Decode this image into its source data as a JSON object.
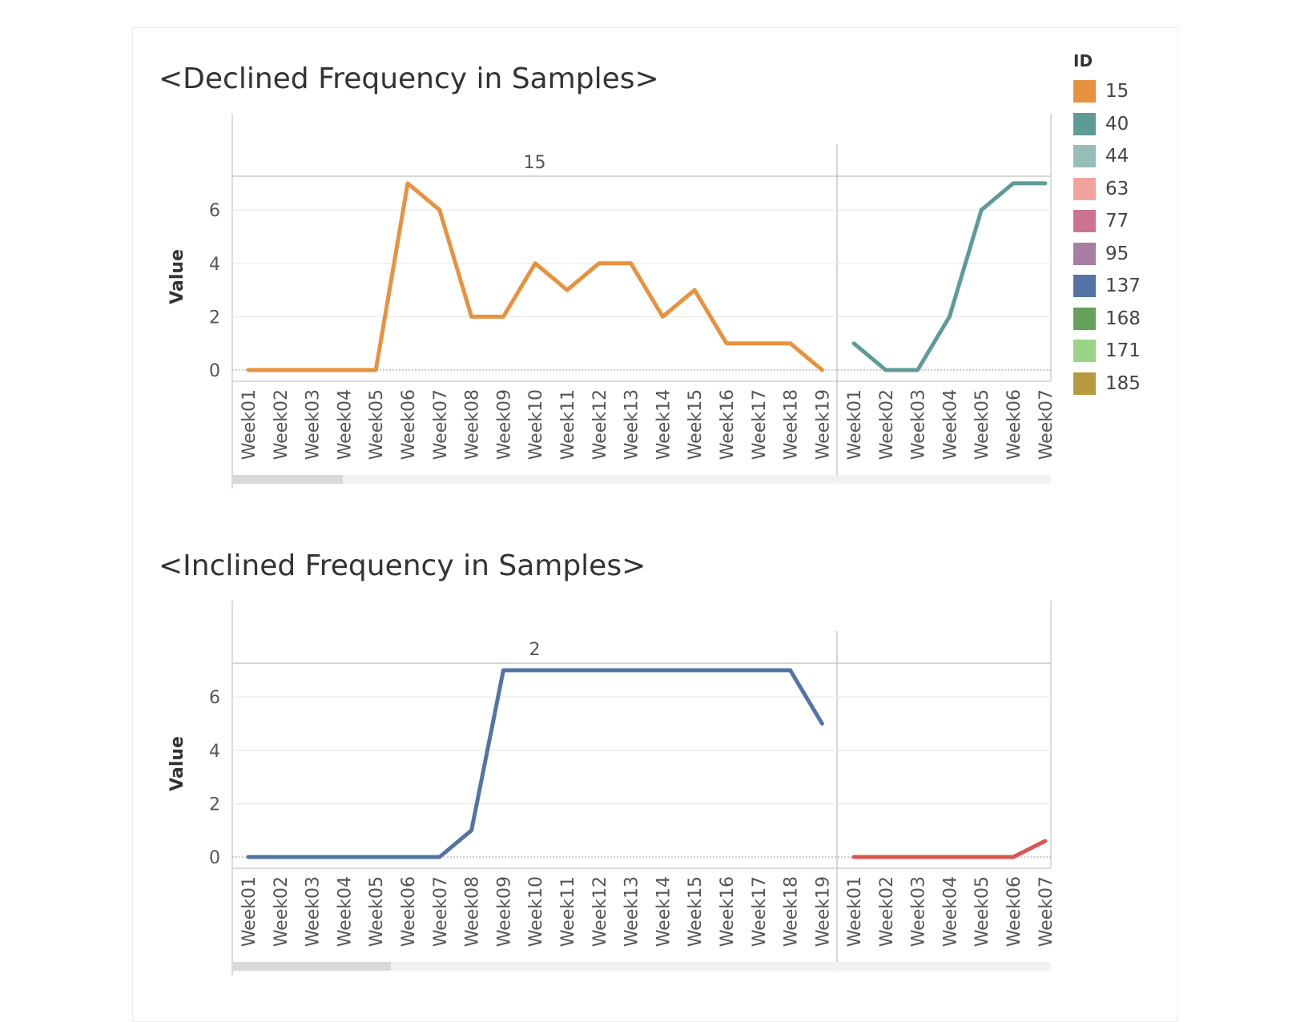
{
  "legend": {
    "title": "ID",
    "items": [
      {
        "label": "15",
        "color": "#E8913E"
      },
      {
        "label": "40",
        "color": "#5E9B97"
      },
      {
        "label": "44",
        "color": "#97BDB9"
      },
      {
        "label": "63",
        "color": "#F2A39C"
      },
      {
        "label": "77",
        "color": "#CC7390"
      },
      {
        "label": "95",
        "color": "#A87EA4"
      },
      {
        "label": "137",
        "color": "#5374A5"
      },
      {
        "label": "168",
        "color": "#66A158"
      },
      {
        "label": "171",
        "color": "#99D487"
      },
      {
        "label": "185",
        "color": "#B7993F"
      }
    ]
  },
  "chart_data": [
    {
      "type": "line",
      "title": "<Declined Frequency in Samples>",
      "ylabel": "Value",
      "ylim": [
        0,
        7
      ],
      "yticks": [
        0,
        2,
        4,
        6
      ],
      "panels": [
        {
          "header": "15",
          "color": "#E8913E",
          "x": [
            "Week01",
            "Week02",
            "Week03",
            "Week04",
            "Week05",
            "Week06",
            "Week07",
            "Week08",
            "Week09",
            "Week10",
            "Week11",
            "Week12",
            "Week13",
            "Week14",
            "Week15",
            "Week16",
            "Week17",
            "Week18",
            "Week19"
          ],
          "values": [
            0,
            0,
            0,
            0,
            0,
            7,
            6,
            2,
            2,
            4,
            3,
            4,
            4,
            2,
            3,
            1,
            1,
            1,
            0
          ]
        },
        {
          "header": "",
          "color": "#5E9B97",
          "x": [
            "Week01",
            "Week02",
            "Week03",
            "Week04",
            "Week05",
            "Week06",
            "Week07"
          ],
          "values": [
            1,
            0,
            0,
            2,
            6,
            7,
            7
          ]
        }
      ]
    },
    {
      "type": "line",
      "title": "<Inclined Frequency in Samples>",
      "ylabel": "Value",
      "ylim": [
        0,
        7
      ],
      "yticks": [
        0,
        2,
        4,
        6
      ],
      "panels": [
        {
          "header": "2",
          "color": "#5374A5",
          "x": [
            "Week01",
            "Week02",
            "Week03",
            "Week04",
            "Week05",
            "Week06",
            "Week07",
            "Week08",
            "Week09",
            "Week10",
            "Week11",
            "Week12",
            "Week13",
            "Week14",
            "Week15",
            "Week16",
            "Week17",
            "Week18",
            "Week19"
          ],
          "values": [
            0,
            0,
            0,
            0,
            0,
            0,
            0,
            1,
            7,
            7,
            7,
            7,
            7,
            7,
            7,
            7,
            7,
            7,
            5
          ]
        },
        {
          "header": "",
          "color": "#D9564F",
          "x": [
            "Week01",
            "Week02",
            "Week03",
            "Week04",
            "Week05",
            "Week06",
            "Week07"
          ],
          "values": [
            0,
            0,
            0,
            0,
            0,
            0,
            0.6
          ]
        }
      ]
    }
  ]
}
